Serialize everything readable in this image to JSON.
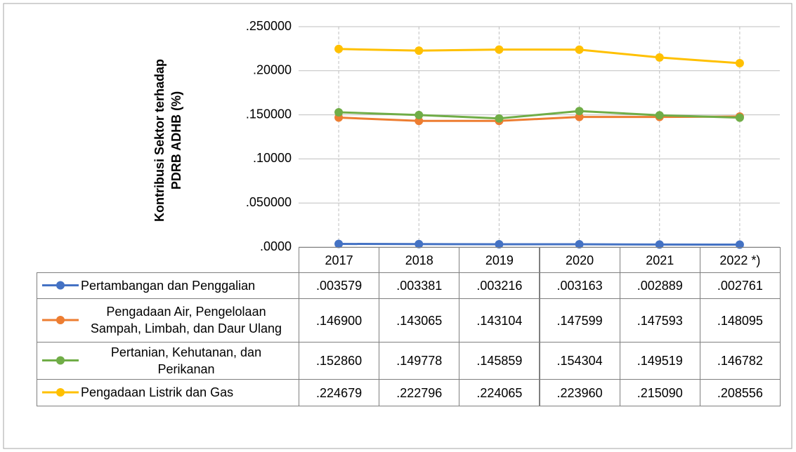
{
  "chart_data": {
    "type": "line",
    "y_label": [
      "Kontribusi Sektor terhadap",
      "PDRB ADHB (%)"
    ],
    "categories": [
      "2017",
      "2018",
      "2019",
      "2020",
      "2021",
      "2022 *)"
    ],
    "ylim": [
      0,
      0.25
    ],
    "yticks": [
      {
        "value": 0,
        "label": ".0000"
      },
      {
        "value": 0.05,
        "label": ".050000"
      },
      {
        "value": 0.1,
        "label": ".10000"
      },
      {
        "value": 0.15,
        "label": ".150000"
      },
      {
        "value": 0.2,
        "label": ".20000"
      },
      {
        "value": 0.25,
        "label": ".250000"
      }
    ],
    "grid": true,
    "series": [
      {
        "name": "Pertambangan dan Penggalian",
        "color": "#4472c4",
        "values": [
          0.003579,
          0.003381,
          0.003216,
          0.003163,
          0.002889,
          0.002761
        ],
        "value_labels": [
          ".003579",
          ".003381",
          ".003216",
          ".003163",
          ".002889",
          ".002761"
        ]
      },
      {
        "name": "Pengadaan Air, Pengelolaan Sampah, Limbah, dan Daur Ulang",
        "color": "#ed7d31",
        "values": [
          0.1469,
          0.143065,
          0.143104,
          0.147599,
          0.147593,
          0.148095
        ],
        "value_labels": [
          ".146900",
          ".143065",
          ".143104",
          ".147599",
          ".147593",
          ".148095"
        ]
      },
      {
        "name": "Pertanian, Kehutanan, dan Perikanan",
        "color": "#70ad47",
        "values": [
          0.15286,
          0.149778,
          0.145859,
          0.154304,
          0.149519,
          0.146782
        ],
        "value_labels": [
          ".152860",
          ".149778",
          ".145859",
          ".154304",
          ".149519",
          ".146782"
        ]
      },
      {
        "name": "Pengadaan Listrik dan Gas",
        "color": "#ffc000",
        "values": [
          0.224679,
          0.222796,
          0.224065,
          0.22396,
          0.21509,
          0.208556
        ],
        "value_labels": [
          ".224679",
          ".222796",
          ".224065",
          ".223960",
          ".215090",
          ".208556"
        ]
      }
    ]
  }
}
